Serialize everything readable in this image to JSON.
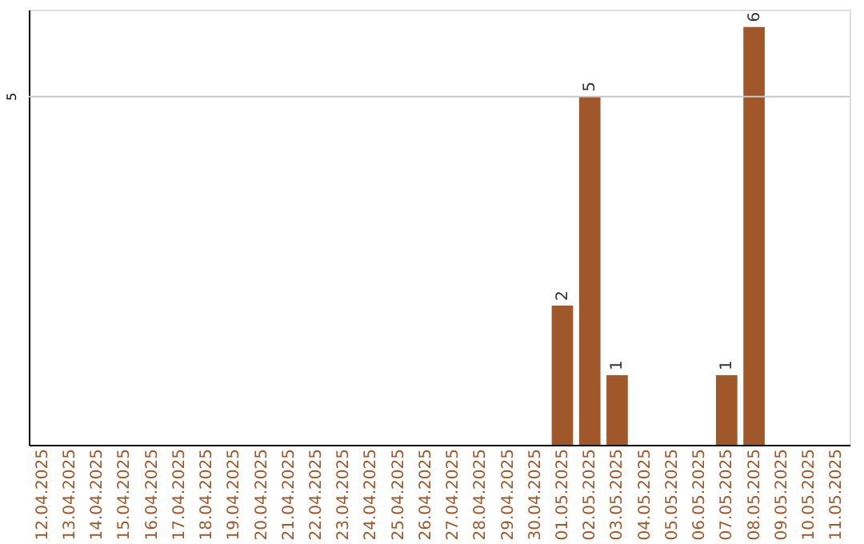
{
  "chart_data": {
    "type": "bar",
    "categories": [
      "12.04.2025",
      "13.04.2025",
      "14.04.2025",
      "15.04.2025",
      "16.04.2025",
      "17.04.2025",
      "18.04.2025",
      "19.04.2025",
      "20.04.2025",
      "21.04.2025",
      "22.04.2025",
      "23.04.2025",
      "24.04.2025",
      "25.04.2025",
      "26.04.2025",
      "27.04.2025",
      "28.04.2025",
      "29.04.2025",
      "30.04.2025",
      "01.05.2025",
      "02.05.2025",
      "03.05.2025",
      "04.05.2025",
      "05.05.2025",
      "06.05.2025",
      "07.05.2025",
      "08.05.2025",
      "09.05.2025",
      "10.05.2025",
      "11.05.2025"
    ],
    "values": [
      null,
      null,
      null,
      null,
      null,
      null,
      null,
      null,
      null,
      null,
      null,
      null,
      null,
      null,
      null,
      null,
      null,
      null,
      null,
      2,
      5,
      1,
      null,
      null,
      null,
      1,
      6,
      null,
      null,
      null
    ],
    "data_labels": true,
    "color": "#a0582a",
    "ylim": [
      0,
      6.25
    ],
    "ref_lines": [
      {
        "axis": "y",
        "value": 5,
        "label": "5",
        "color": "#c8c8c8"
      }
    ]
  }
}
